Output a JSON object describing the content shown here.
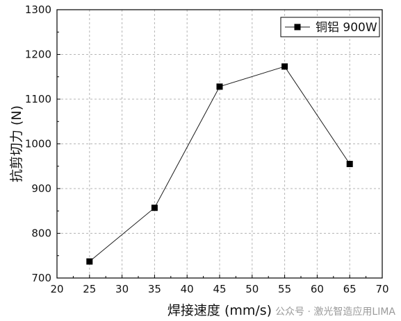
{
  "chart_data": {
    "type": "line",
    "x": [
      25,
      35,
      45,
      55,
      65
    ],
    "series": [
      {
        "name": "铜铝 900W",
        "values": [
          737,
          857,
          1128,
          1173,
          955
        ]
      }
    ],
    "xlabel": "焊接速度 (mm/s)",
    "ylabel": "抗剪切力 (N)",
    "xlim": [
      20,
      70
    ],
    "ylim": [
      700,
      1300
    ],
    "xticks": [
      "20",
      "25",
      "30",
      "35",
      "40",
      "45",
      "50",
      "55",
      "60",
      "65",
      "70"
    ],
    "yticks": [
      "700",
      "800",
      "900",
      "1000",
      "1100",
      "1200",
      "1300"
    ],
    "grid": true,
    "legend_position": "top-right",
    "marker": "square",
    "line_color": "#1a1a1a"
  },
  "watermark": "公众号 · 激光智造应用LIMA"
}
